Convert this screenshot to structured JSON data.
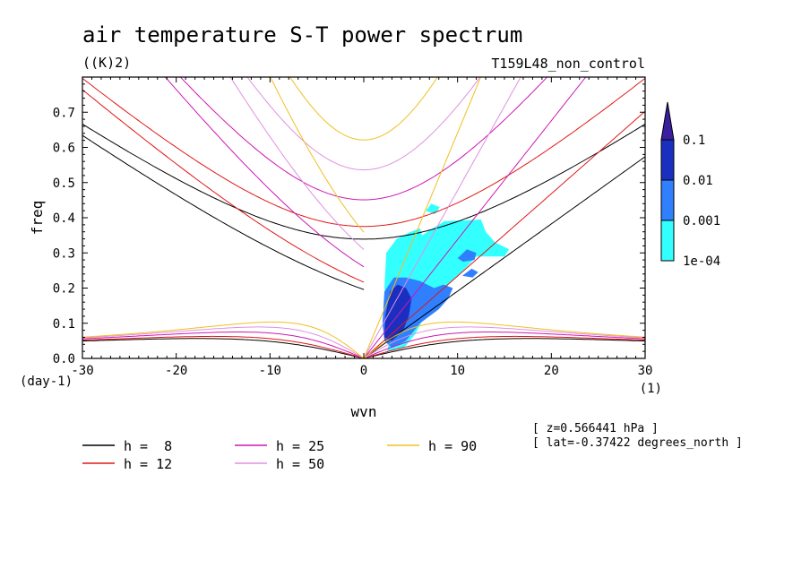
{
  "chart_data": {
    "type": "contour",
    "title": "air temperature S-T power spectrum",
    "units": "((K)2)",
    "experiment": "T159L48_non_control",
    "xlabel": "wvn",
    "ylabel": "freq",
    "x_unit_label": "(1)",
    "y_unit_label": "(day-1)",
    "xlim": [
      -30,
      30
    ],
    "ylim": [
      0,
      0.8
    ],
    "x_ticks": [
      -30,
      -20,
      -10,
      0,
      10,
      20,
      30
    ],
    "y_ticks": [
      0.0,
      0.1,
      0.2,
      0.3,
      0.4,
      0.5,
      0.6,
      0.7
    ],
    "x_tick_labels": [
      "-30",
      "-20",
      "-10",
      "0",
      "10",
      "20",
      "30"
    ],
    "y_tick_labels": [
      "0.0",
      "0.1",
      "0.2",
      "0.3",
      "0.4",
      "0.5",
      "0.6",
      "0.7"
    ],
    "colorbar": {
      "levels": [
        "0.1",
        "0.01",
        "0.001",
        "1e-04"
      ],
      "colors": [
        "#3a1f9e",
        "#1a2fbf",
        "#2f7fff",
        "#33ffff"
      ]
    },
    "dispersion_curves": [
      {
        "name": "h = 8",
        "h": 8,
        "color": "#000000"
      },
      {
        "name": "h = 12",
        "h": 12,
        "color": "#e01818"
      },
      {
        "name": "h = 25",
        "h": 25,
        "color": "#cc18b4"
      },
      {
        "name": "h = 50",
        "h": 50,
        "color": "#e090e0"
      },
      {
        "name": "h = 90",
        "h": 90,
        "color": "#f0c020"
      }
    ],
    "legend_labels": [
      "h =  8",
      "h = 12",
      "h = 25",
      "h = 50",
      "h = 90"
    ],
    "annotations": [
      "[ z=0.566441 hPa ]",
      "[ lat=-0.37422 degrees_north ]"
    ],
    "spectrum_regions": [
      {
        "level": "1e-04",
        "polygon": [
          [
            2.5,
            0.02
          ],
          [
            3,
            0.1
          ],
          [
            2.2,
            0.2
          ],
          [
            2.4,
            0.3
          ],
          [
            3.5,
            0.34
          ],
          [
            5,
            0.36
          ],
          [
            6,
            0.37
          ],
          [
            6.2,
            0.35
          ],
          [
            8.6,
            0.39
          ],
          [
            12.5,
            0.395
          ],
          [
            13,
            0.36
          ],
          [
            14,
            0.33
          ],
          [
            15.5,
            0.31
          ],
          [
            15,
            0.29
          ],
          [
            12,
            0.29
          ],
          [
            11,
            0.26
          ],
          [
            9,
            0.21
          ],
          [
            8,
            0.17
          ],
          [
            6.5,
            0.12
          ],
          [
            5.5,
            0.07
          ],
          [
            4.3,
            0.03
          ]
        ]
      },
      {
        "level": "0.001",
        "polygon": [
          [
            2.2,
            0.05
          ],
          [
            2,
            0.1
          ],
          [
            2.2,
            0.19
          ],
          [
            3.2,
            0.23
          ],
          [
            4.5,
            0.23
          ],
          [
            6,
            0.22
          ],
          [
            7.5,
            0.2
          ],
          [
            8.5,
            0.21
          ],
          [
            9.5,
            0.2
          ],
          [
            9,
            0.17
          ],
          [
            8,
            0.14
          ],
          [
            6,
            0.1
          ],
          [
            4.5,
            0.05
          ],
          [
            3,
            0.03
          ]
        ]
      },
      {
        "level": "0.01",
        "polygon": [
          [
            2.2,
            0.06
          ],
          [
            2.3,
            0.12
          ],
          [
            2.8,
            0.19
          ],
          [
            3.6,
            0.21
          ],
          [
            4.5,
            0.2
          ],
          [
            5.1,
            0.17
          ],
          [
            4.8,
            0.12
          ],
          [
            4.2,
            0.08
          ],
          [
            3,
            0.05
          ]
        ]
      },
      {
        "level": "0.001",
        "polygon": [
          [
            10,
            0.285
          ],
          [
            11,
            0.31
          ],
          [
            12,
            0.3
          ],
          [
            11.8,
            0.28
          ],
          [
            10.6,
            0.275
          ]
        ]
      },
      {
        "level": "0.001",
        "polygon": [
          [
            10.5,
            0.235
          ],
          [
            11.5,
            0.255
          ],
          [
            12.2,
            0.245
          ],
          [
            11.6,
            0.23
          ]
        ]
      },
      {
        "level": "1e-04",
        "polygon": [
          [
            6.6,
            0.42
          ],
          [
            7.2,
            0.44
          ],
          [
            8.1,
            0.43
          ],
          [
            7.6,
            0.41
          ]
        ]
      }
    ]
  }
}
